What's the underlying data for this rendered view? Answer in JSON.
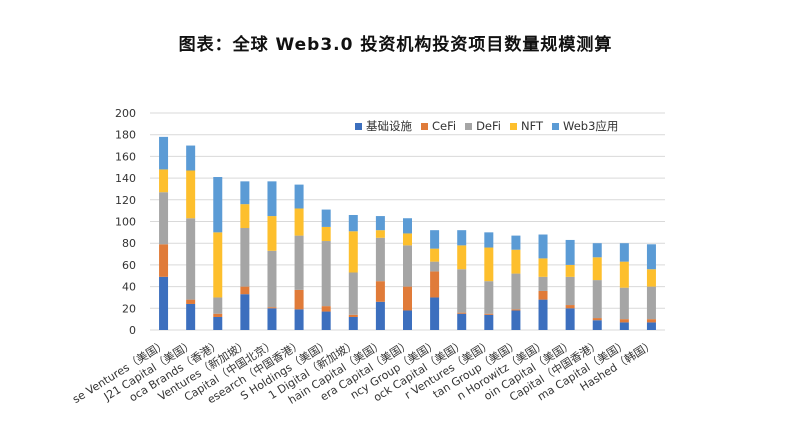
{
  "title": "图表：全球 Web3.0 投资机构投资项目数量规模测算",
  "chart_data": {
    "type": "bar",
    "stacked": true,
    "title": "图表：全球 Web3.0 投资机构投资项目数量规模测算",
    "ylim": [
      0,
      200
    ],
    "yticks": [
      0,
      20,
      40,
      60,
      80,
      100,
      120,
      140,
      160,
      180,
      200
    ],
    "grid": true,
    "legend_position": "top-right",
    "categories": [
      "se Ventures（美国）",
      "J21 Capital（美国）",
      "oca Brands（香港）",
      "Ventures（新加坡）",
      "Capital（中国北京）",
      "esearch（中国香港）",
      "S Holdings（美国）",
      "1 Digital（新加坡）",
      "hain Capital（美国）",
      "era Capital（美国）",
      "ncy Group（美国）",
      "ock Capital（美国）",
      "r Ventures（美国）",
      "tan Group（美国）",
      "n Horowitz（美国）",
      "oin Capital（美国）",
      "Capital（中国香港）",
      "ma Capital（美国）",
      "Hashed（韩国）"
    ],
    "series": [
      {
        "name": "基础设施",
        "color": "#3c6fbe",
        "values": [
          49,
          24,
          12,
          33,
          20,
          19,
          17,
          12,
          26,
          18,
          30,
          15,
          14,
          18,
          28,
          20,
          9,
          7,
          7
        ]
      },
      {
        "name": "CeFi",
        "color": "#e07b39",
        "values": [
          30,
          4,
          3,
          7,
          1,
          18,
          5,
          2,
          19,
          22,
          24,
          1,
          1,
          1,
          8,
          3,
          2,
          3,
          3
        ]
      },
      {
        "name": "DeFi",
        "color": "#a5a5a5",
        "values": [
          48,
          75,
          15,
          54,
          52,
          50,
          60,
          39,
          40,
          38,
          9,
          40,
          30,
          33,
          13,
          26,
          35,
          29,
          30
        ]
      },
      {
        "name": "NFT",
        "color": "#fdbf2d",
        "values": [
          21,
          44,
          60,
          22,
          32,
          25,
          13,
          38,
          7,
          11,
          12,
          22,
          31,
          22,
          17,
          11,
          21,
          24,
          16
        ]
      },
      {
        "name": "Web3应用",
        "color": "#5b9bd5",
        "values": [
          30,
          23,
          51,
          21,
          32,
          22,
          16,
          15,
          13,
          14,
          17,
          14,
          14,
          13,
          22,
          23,
          13,
          17,
          23
        ]
      }
    ]
  }
}
